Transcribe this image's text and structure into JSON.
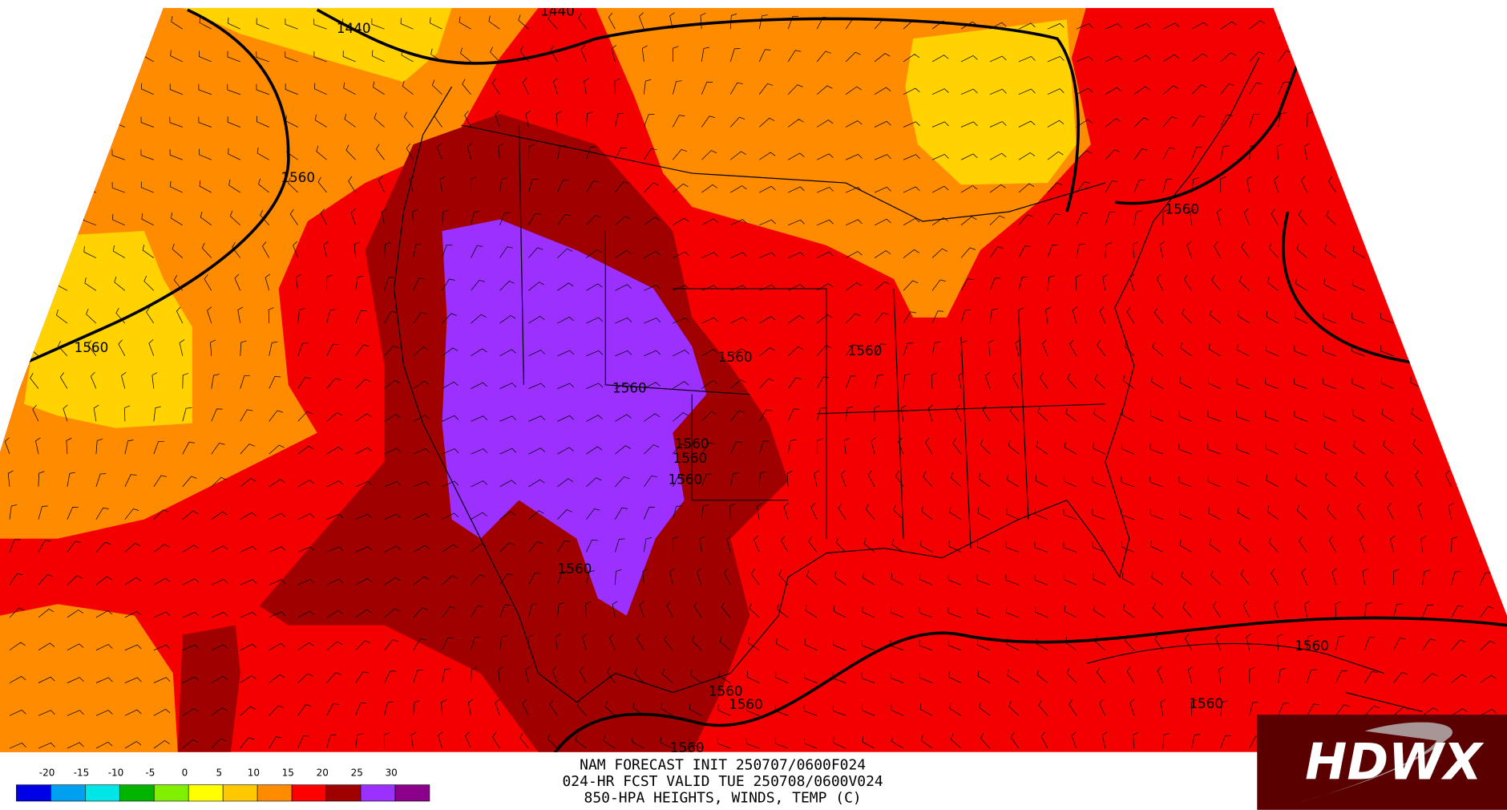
{
  "map": {
    "contour_labels": [
      "1440",
      "1440",
      "1560",
      "1560",
      "1560",
      "1560",
      "1560",
      "1560",
      "1560",
      "1560",
      "1560",
      "1560",
      "1560",
      "1560",
      "1560",
      "1560",
      "1560"
    ],
    "colorbar": {
      "ticks": [
        -20,
        -15,
        -10,
        -5,
        0,
        5,
        10,
        15,
        20,
        25,
        30
      ],
      "colors": [
        "#0000e6",
        "#00a0f0",
        "#00e6e6",
        "#00b400",
        "#80f000",
        "#ffff00",
        "#ffc800",
        "#ff8c00",
        "#ff0000",
        "#a00000",
        "#9b30ff",
        "#8b008b"
      ]
    }
  },
  "header": {
    "lines": [
      "NAM FORECAST INIT 250707/0600F024",
      "024-HR FCST VALID TUE 250708/0600V024",
      "850-HPA HEIGHTS, WINDS, TEMP (C)"
    ]
  },
  "logo": {
    "text": "HDWX"
  }
}
